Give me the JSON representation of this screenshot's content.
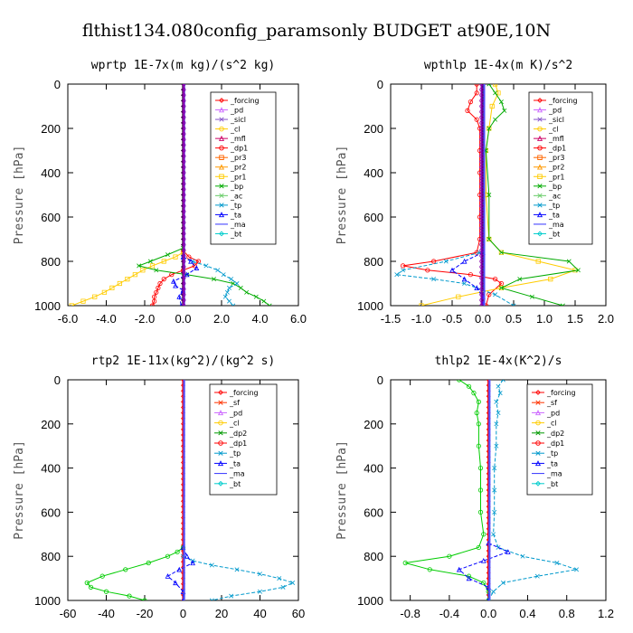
{
  "page_title": "flthist134.080config_paramsonly  BUDGET at90E,10N",
  "chart_data": [
    {
      "type": "line",
      "title": "wprtp  1E-7x(m kg)/(s^2 kg)",
      "ylabel": "Pressure [hPa]",
      "xlim": [
        -6.0,
        6.0
      ],
      "ylim": [
        1000,
        0
      ],
      "xticks": [
        -6.0,
        -4.0,
        -2.0,
        0.0,
        2.0,
        4.0,
        6.0
      ],
      "xtick_labels": [
        "-6.0",
        "-4.0",
        "-2.0",
        "0.0",
        "2.0",
        "4.0",
        "6.0"
      ],
      "yticks": [
        0,
        200,
        400,
        600,
        800,
        1000
      ],
      "legend": [
        "_forcing",
        "_pd",
        "_sicl",
        "_cl",
        "_mfl",
        "_dp1",
        "_pr3",
        "_pr2",
        "_pr1",
        "_bp",
        "_ac",
        "_tp",
        "_ta",
        "_ma",
        "_bt"
      ],
      "series": [
        {
          "name": "_forcing",
          "color": "#000000",
          "y": [
            0,
            1000
          ],
          "x": [
            0,
            0
          ]
        },
        {
          "name": "_dp1",
          "color": "#ff0000",
          "y": [
            750,
            780,
            800,
            820,
            840,
            860,
            880,
            900,
            920,
            940,
            960,
            980,
            1000
          ],
          "x": [
            0,
            0.3,
            0.8,
            0.6,
            0,
            -0.6,
            -1.0,
            -1.2,
            -1.3,
            -1.4,
            -1.5,
            -1.5,
            -1.6
          ]
        },
        {
          "name": "_pr1",
          "color": "#ffcc00",
          "y": [
            760,
            780,
            800,
            820,
            840,
            860,
            880,
            900,
            920,
            940,
            960,
            980,
            1000
          ],
          "x": [
            0,
            -0.4,
            -1.0,
            -1.6,
            -2.1,
            -2.5,
            -2.9,
            -3.3,
            -3.7,
            -4.1,
            -4.6,
            -5.2,
            -5.8
          ]
        },
        {
          "name": "_bp",
          "color": "#00aa00",
          "y": [
            740,
            770,
            800,
            820,
            840,
            860,
            880,
            900,
            920,
            940,
            960,
            980,
            1000
          ],
          "x": [
            0,
            -0.8,
            -1.7,
            -2.3,
            -1.4,
            0.2,
            1.6,
            2.6,
            3.0,
            3.3,
            3.8,
            4.2,
            4.5
          ]
        },
        {
          "name": "_tp",
          "color": "#0099cc",
          "y": [
            780,
            800,
            820,
            840,
            860,
            880,
            900,
            920,
            940,
            960,
            980,
            1000
          ],
          "x": [
            0,
            0.5,
            1.2,
            1.8,
            2.1,
            2.5,
            2.8,
            2.4,
            2.3,
            2.2,
            2.4,
            2.6
          ]
        },
        {
          "name": "_ta",
          "color": "#0000ff",
          "y": [
            780,
            800,
            830,
            860,
            890,
            910,
            930,
            960,
            1000
          ],
          "x": [
            0,
            0.4,
            0.7,
            0.2,
            -0.5,
            -0.4,
            0,
            -0.2,
            -0.1
          ]
        },
        {
          "name": "_ma",
          "color": "#5050ff",
          "y": [
            0,
            1000
          ],
          "x": [
            0.05,
            0.05
          ]
        },
        {
          "name": "_cl",
          "color": "#8800aa",
          "y": [
            0,
            1000
          ],
          "x": [
            0.03,
            0.03
          ]
        }
      ]
    },
    {
      "type": "line",
      "title": "wpthlp  1E-4x(m K)/s^2",
      "ylabel": "Pressure [hPa]",
      "xlim": [
        -1.5,
        2.0
      ],
      "ylim": [
        1000,
        0
      ],
      "xticks": [
        -1.5,
        -1.0,
        -0.5,
        0.0,
        0.5,
        1.0,
        1.5,
        2.0
      ],
      "xtick_labels": [
        "-1.5",
        "-1.0",
        "-0.5",
        "0.0",
        "0.5",
        "1.0",
        "1.5",
        "2.0"
      ],
      "yticks": [
        0,
        200,
        400,
        600,
        800,
        1000
      ],
      "legend": [
        "_forcing",
        "_pd",
        "_sicl",
        "_cl",
        "_mfl",
        "_dp1",
        "_pr3",
        "_pr2",
        "_pr1",
        "_bp",
        "_ac",
        "_tp",
        "_ta",
        "_ma",
        "_bt"
      ],
      "series": [
        {
          "name": "_forcing",
          "color": "#000000",
          "y": [
            0,
            1000
          ],
          "x": [
            0,
            0
          ]
        },
        {
          "name": "_dp1",
          "color": "#ff0000",
          "y": [
            0,
            40,
            80,
            120,
            160,
            200,
            300,
            400,
            500,
            600,
            700,
            760,
            800,
            820,
            840,
            860,
            880,
            900,
            950,
            1000
          ],
          "x": [
            -0.1,
            -0.1,
            -0.2,
            -0.25,
            -0.1,
            -0.05,
            -0.05,
            -0.05,
            -0.05,
            -0.05,
            -0.05,
            -0.1,
            -0.8,
            -1.3,
            -0.9,
            -0.2,
            0.2,
            0.3,
            0.1,
            0.05
          ]
        },
        {
          "name": "_pr1",
          "color": "#ffcc00",
          "y": [
            0,
            40,
            100,
            200,
            300,
            500,
            700,
            760,
            800,
            840,
            880,
            920,
            960,
            1000
          ],
          "x": [
            0.2,
            0.25,
            0.15,
            0.1,
            0.05,
            0.05,
            0.1,
            0.3,
            0.9,
            1.5,
            1.1,
            0.3,
            -0.4,
            -1.0
          ]
        },
        {
          "name": "_bp",
          "color": "#00aa00",
          "y": [
            0,
            40,
            80,
            120,
            160,
            200,
            300,
            500,
            700,
            760,
            800,
            840,
            880,
            920,
            960,
            1000
          ],
          "x": [
            0.1,
            0.2,
            0.3,
            0.35,
            0.2,
            0.1,
            0.05,
            0.1,
            0.1,
            0.3,
            1.4,
            1.55,
            0.6,
            0.3,
            0.8,
            1.3
          ]
        },
        {
          "name": "_tp",
          "color": "#0099cc",
          "y": [
            760,
            800,
            840,
            860,
            880,
            900,
            950,
            1000
          ],
          "x": [
            -0.05,
            -0.6,
            -1.3,
            -1.4,
            -0.8,
            -0.3,
            0.2,
            0.5
          ]
        },
        {
          "name": "_ta",
          "color": "#0000ff",
          "y": [
            760,
            800,
            840,
            880,
            920,
            960,
            1000
          ],
          "x": [
            0,
            -0.3,
            -0.5,
            -0.3,
            -0.1,
            0,
            0
          ]
        },
        {
          "name": "_ma",
          "color": "#5050ff",
          "y": [
            0,
            1000
          ],
          "x": [
            0.02,
            0.02
          ]
        },
        {
          "name": "_cl",
          "color": "#8800aa",
          "y": [
            0,
            1000
          ],
          "x": [
            -0.02,
            -0.02
          ]
        }
      ]
    },
    {
      "type": "line",
      "title": "rtp2  1E-11x(kg^2)/(kg^2 s)",
      "ylabel": "Pressure [hPa]",
      "xlim": [
        -60,
        60
      ],
      "ylim": [
        1000,
        0
      ],
      "xticks": [
        -60,
        -40,
        -20,
        0,
        20,
        40,
        60
      ],
      "xtick_labels": [
        "-60",
        "-40",
        "-20",
        "0",
        "20",
        "40",
        "60"
      ],
      "yticks": [
        0,
        200,
        400,
        600,
        800,
        1000
      ],
      "legend": [
        "_forcing",
        "_sf",
        "_pd",
        "_cl",
        "_dp2",
        "_dp1",
        "_tp",
        "_ta",
        "_ma",
        "_bt"
      ],
      "series": [
        {
          "name": "_forcing",
          "color": "#ff0000",
          "y": [
            0,
            1000
          ],
          "x": [
            0,
            0
          ]
        },
        {
          "name": "_dp1",
          "color": "#00cc00",
          "y": [
            760,
            780,
            800,
            830,
            860,
            890,
            920,
            940,
            960,
            980,
            1000
          ],
          "x": [
            0,
            -3,
            -8,
            -18,
            -30,
            -42,
            -50,
            -48,
            -40,
            -28,
            -20
          ]
        },
        {
          "name": "_tp",
          "color": "#0099cc",
          "y": [
            800,
            820,
            840,
            860,
            880,
            900,
            920,
            940,
            960,
            980,
            1000
          ],
          "x": [
            0,
            5,
            15,
            28,
            40,
            50,
            57,
            52,
            40,
            25,
            15
          ]
        },
        {
          "name": "_ta",
          "color": "#0000ff",
          "y": [
            760,
            800,
            830,
            860,
            890,
            920,
            960,
            1000
          ],
          "x": [
            0,
            2,
            5,
            -2,
            -8,
            -4,
            0,
            0
          ]
        },
        {
          "name": "_ma",
          "color": "#5050ff",
          "y": [
            0,
            1000
          ],
          "x": [
            0.5,
            0.5
          ]
        }
      ]
    },
    {
      "type": "line",
      "title": "thlp2  1E-4x(K^2)/s",
      "ylabel": "Pressure [hPa]",
      "xlim": [
        -1.0,
        1.2
      ],
      "ylim": [
        1000,
        0
      ],
      "xticks": [
        -0.8,
        -0.4,
        0.0,
        0.4,
        0.8,
        1.2
      ],
      "xtick_labels": [
        "-0.8",
        "-0.4",
        "0.0",
        "0.4",
        "0.8",
        "1.2"
      ],
      "yticks": [
        0,
        200,
        400,
        600,
        800,
        1000
      ],
      "legend": [
        "_forcing",
        "_sf",
        "_pd",
        "_cl",
        "_dp2",
        "_dp1",
        "_tp",
        "_ta",
        "_ma",
        "_bt"
      ],
      "series": [
        {
          "name": "_forcing",
          "color": "#ff0000",
          "y": [
            0,
            1000
          ],
          "x": [
            0,
            0
          ]
        },
        {
          "name": "_dp1",
          "color": "#00cc00",
          "y": [
            0,
            30,
            60,
            100,
            150,
            200,
            300,
            400,
            500,
            600,
            700,
            760,
            800,
            830,
            860,
            890,
            920,
            960,
            1000
          ],
          "x": [
            -0.3,
            -0.2,
            -0.15,
            -0.1,
            -0.12,
            -0.1,
            -0.1,
            -0.08,
            -0.08,
            -0.08,
            -0.05,
            -0.1,
            -0.4,
            -0.85,
            -0.6,
            -0.2,
            -0.05,
            0,
            0
          ]
        },
        {
          "name": "_tp",
          "color": "#0099cc",
          "y": [
            0,
            30,
            60,
            100,
            150,
            200,
            300,
            400,
            500,
            600,
            700,
            760,
            800,
            830,
            860,
            890,
            920,
            960,
            1000
          ],
          "x": [
            0.15,
            0.1,
            0.12,
            0.08,
            0.1,
            0.08,
            0.08,
            0.06,
            0.06,
            0.06,
            0.05,
            0.1,
            0.35,
            0.7,
            0.9,
            0.5,
            0.15,
            0.05,
            0
          ]
        },
        {
          "name": "_ta",
          "color": "#0000ff",
          "y": [
            740,
            780,
            820,
            860,
            900,
            940,
            1000
          ],
          "x": [
            0,
            0.2,
            -0.05,
            -0.3,
            -0.2,
            0,
            0
          ]
        },
        {
          "name": "_ma",
          "color": "#5050ff",
          "y": [
            0,
            1000
          ],
          "x": [
            0.01,
            0.01
          ]
        }
      ]
    }
  ],
  "legend_styles": {
    "_forcing": {
      "color": "#ff0000",
      "marker": "diamond"
    },
    "_sf": {
      "color": "#ff3300",
      "marker": "x"
    },
    "_pd": {
      "color": "#cc66ff",
      "marker": "triangle"
    },
    "_sicl": {
      "color": "#8855cc",
      "marker": "x"
    },
    "_cl": {
      "color": "#ffcc00",
      "marker": "circle"
    },
    "_mfl": {
      "color": "#cc0066",
      "marker": "triangle"
    },
    "_dp1": {
      "color": "#ff0000",
      "marker": "circle"
    },
    "_dp2": {
      "color": "#009900",
      "marker": "x"
    },
    "_pr3": {
      "color": "#ff6600",
      "marker": "square"
    },
    "_pr2": {
      "color": "#ff9900",
      "marker": "triangle"
    },
    "_pr1": {
      "color": "#ffcc00",
      "marker": "square"
    },
    "_bp": {
      "color": "#00aa00",
      "marker": "x"
    },
    "_ac": {
      "color": "#66cc66",
      "marker": "x"
    },
    "_tp": {
      "color": "#0099cc",
      "marker": "x"
    },
    "_ta": {
      "color": "#0000ff",
      "marker": "triangle"
    },
    "_ma": {
      "color": "#3333ff",
      "marker": "line"
    },
    "_bt": {
      "color": "#00cccc",
      "marker": "diamond"
    }
  }
}
